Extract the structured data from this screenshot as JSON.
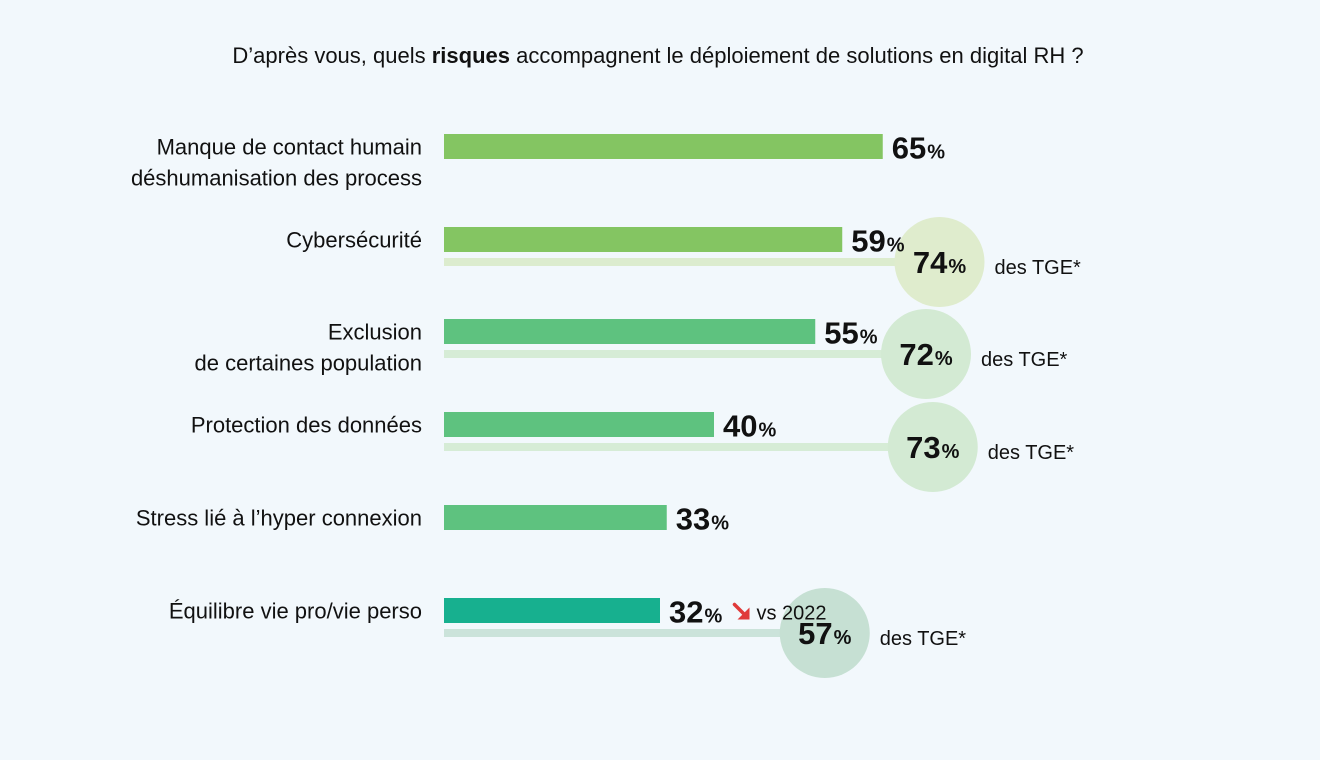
{
  "chart_data": {
    "type": "bar",
    "orientation": "horizontal",
    "title": {
      "before": "D’après vous, quels ",
      "emphasis": "risques",
      "after": " accompagnent le déploiement de solutions en digital RH ?"
    },
    "categories": [
      [
        "Manque de contact humain",
        "déshumanisation des process"
      ],
      [
        "Cybersécurité"
      ],
      [
        "Exclusion",
        "de certaines population"
      ],
      [
        "Protection des données"
      ],
      [
        "Stress lié à l’hyper connexion"
      ],
      [
        "Équilibre vie pro/vie perso"
      ]
    ],
    "series": [
      {
        "values": [
          65,
          59,
          55,
          40,
          33,
          32
        ],
        "colors": [
          "#84c562",
          "#84c562",
          "#5ec27f",
          "#5ec27f",
          "#5ec27f",
          "#17b08f"
        ]
      },
      {
        "name": "des TGE*",
        "values": [
          null,
          74,
          72,
          73,
          null,
          57
        ],
        "track_colors": [
          null,
          "#dcecce",
          "#d6ecd6",
          "#d6ecd6",
          null,
          "#cbe3da"
        ],
        "bubble_colors": [
          null,
          "#dfeccd",
          "#d3ead3",
          "#d3ead3",
          null,
          "#c6e0d3"
        ]
      }
    ],
    "unit": "%",
    "xlim": [
      0,
      100
    ],
    "grid": false,
    "annotations": [
      {
        "category_index": 5,
        "icon": "arrow-down-right-icon",
        "icon_color": "#e03a3a",
        "text": "vs 2022"
      }
    ]
  }
}
